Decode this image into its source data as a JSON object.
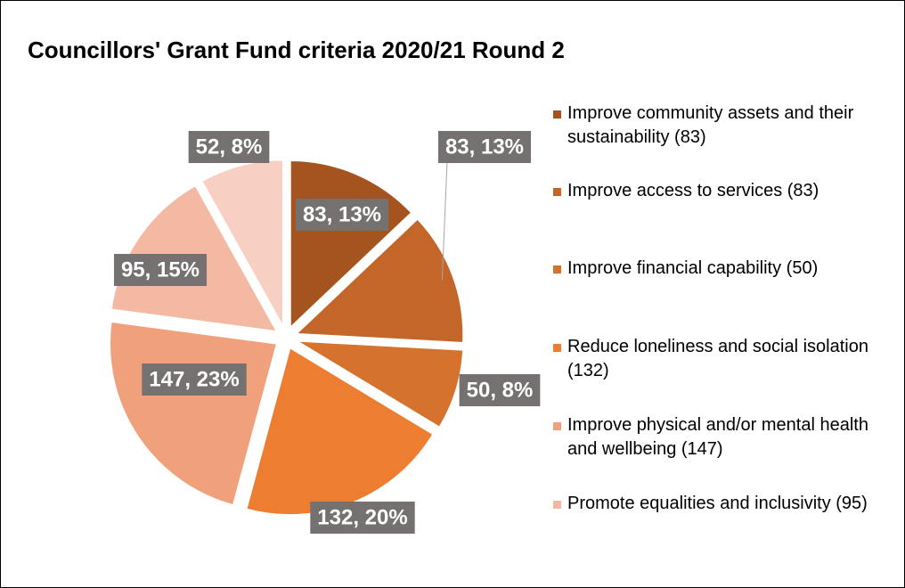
{
  "chart_data": {
    "type": "pie",
    "title": "Councillors' Grant Fund criteria 2020/21 Round 2",
    "categories": [
      "Improve community assets and their sustainability (83)",
      "Improve access to services (83)",
      "Improve financial capability (50)",
      "Reduce loneliness and social isolation (132)",
      "Improve physical and/or mental health and wellbeing (147)",
      "Promote equalities and inclusivity (95)",
      null
    ],
    "values": [
      83,
      83,
      50,
      132,
      147,
      95,
      52
    ],
    "value_labels": [
      "83, 13%",
      "83, 13%",
      "50, 8%",
      "132, 20%",
      "147, 23%",
      "95, 15%",
      "52, 8%"
    ],
    "colors": [
      "#a5541f",
      "#c4652a",
      "#d5722d",
      "#ed7d31",
      "#f0a07a",
      "#f3b9a2",
      "#f8d0c3"
    ]
  }
}
